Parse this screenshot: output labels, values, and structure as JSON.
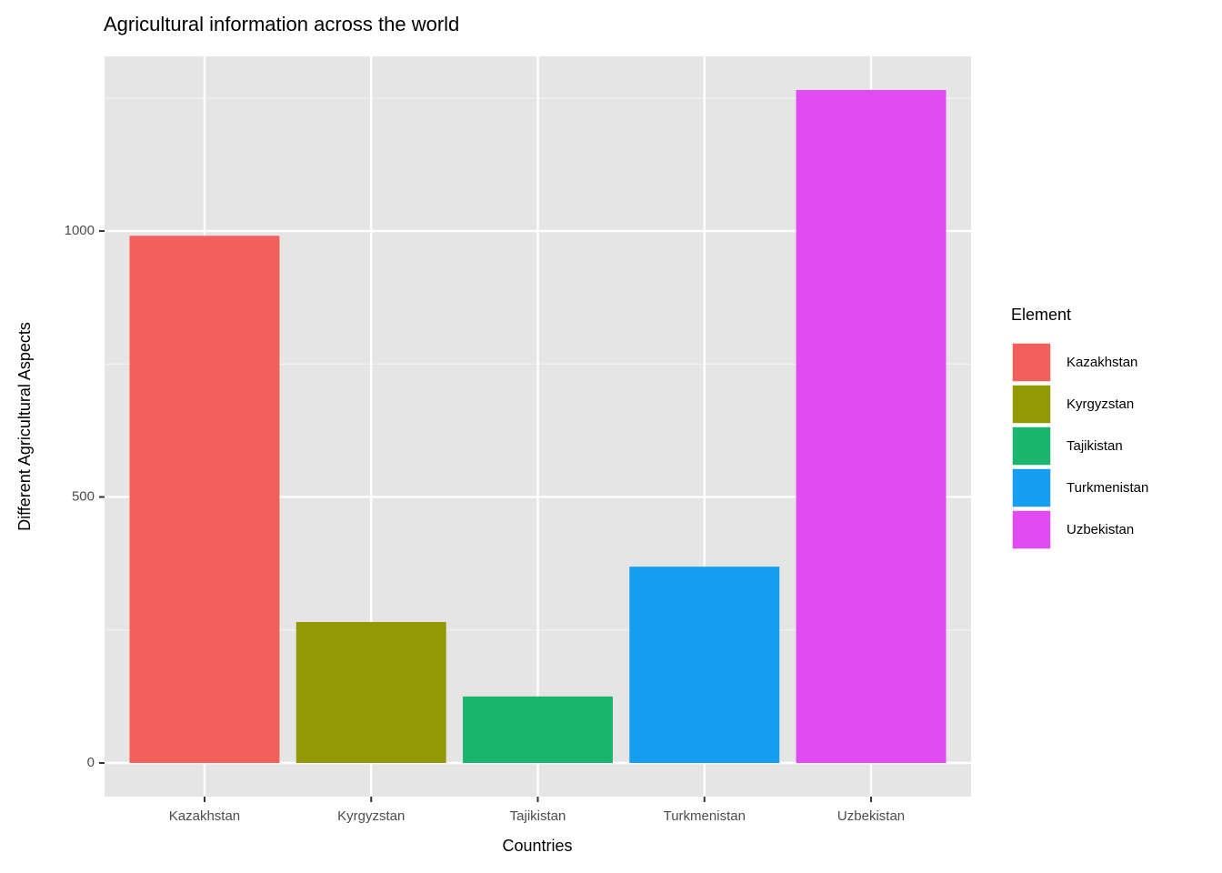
{
  "chart_data": {
    "type": "bar",
    "title": "Agricultural information across the world",
    "x_label": "Countries",
    "y_label": "Different Agricultural Aspects",
    "categories": [
      "Kazakhstan",
      "Kyrgyzstan",
      "Tajikistan",
      "Turkmenistan",
      "Uzbekistan"
    ],
    "values": [
      991,
      265,
      125,
      369,
      1265
    ],
    "colors": [
      "#F3605B",
      "#939905",
      "#1BB66E",
      "#169EF0",
      "#E04CF2"
    ],
    "ylim": [
      -63.25,
      1328.25
    ],
    "yticks": [
      0,
      500,
      1000
    ],
    "yminor": [
      250,
      750,
      1250
    ],
    "grid": true,
    "legend_title": "Element",
    "legend": "right"
  }
}
